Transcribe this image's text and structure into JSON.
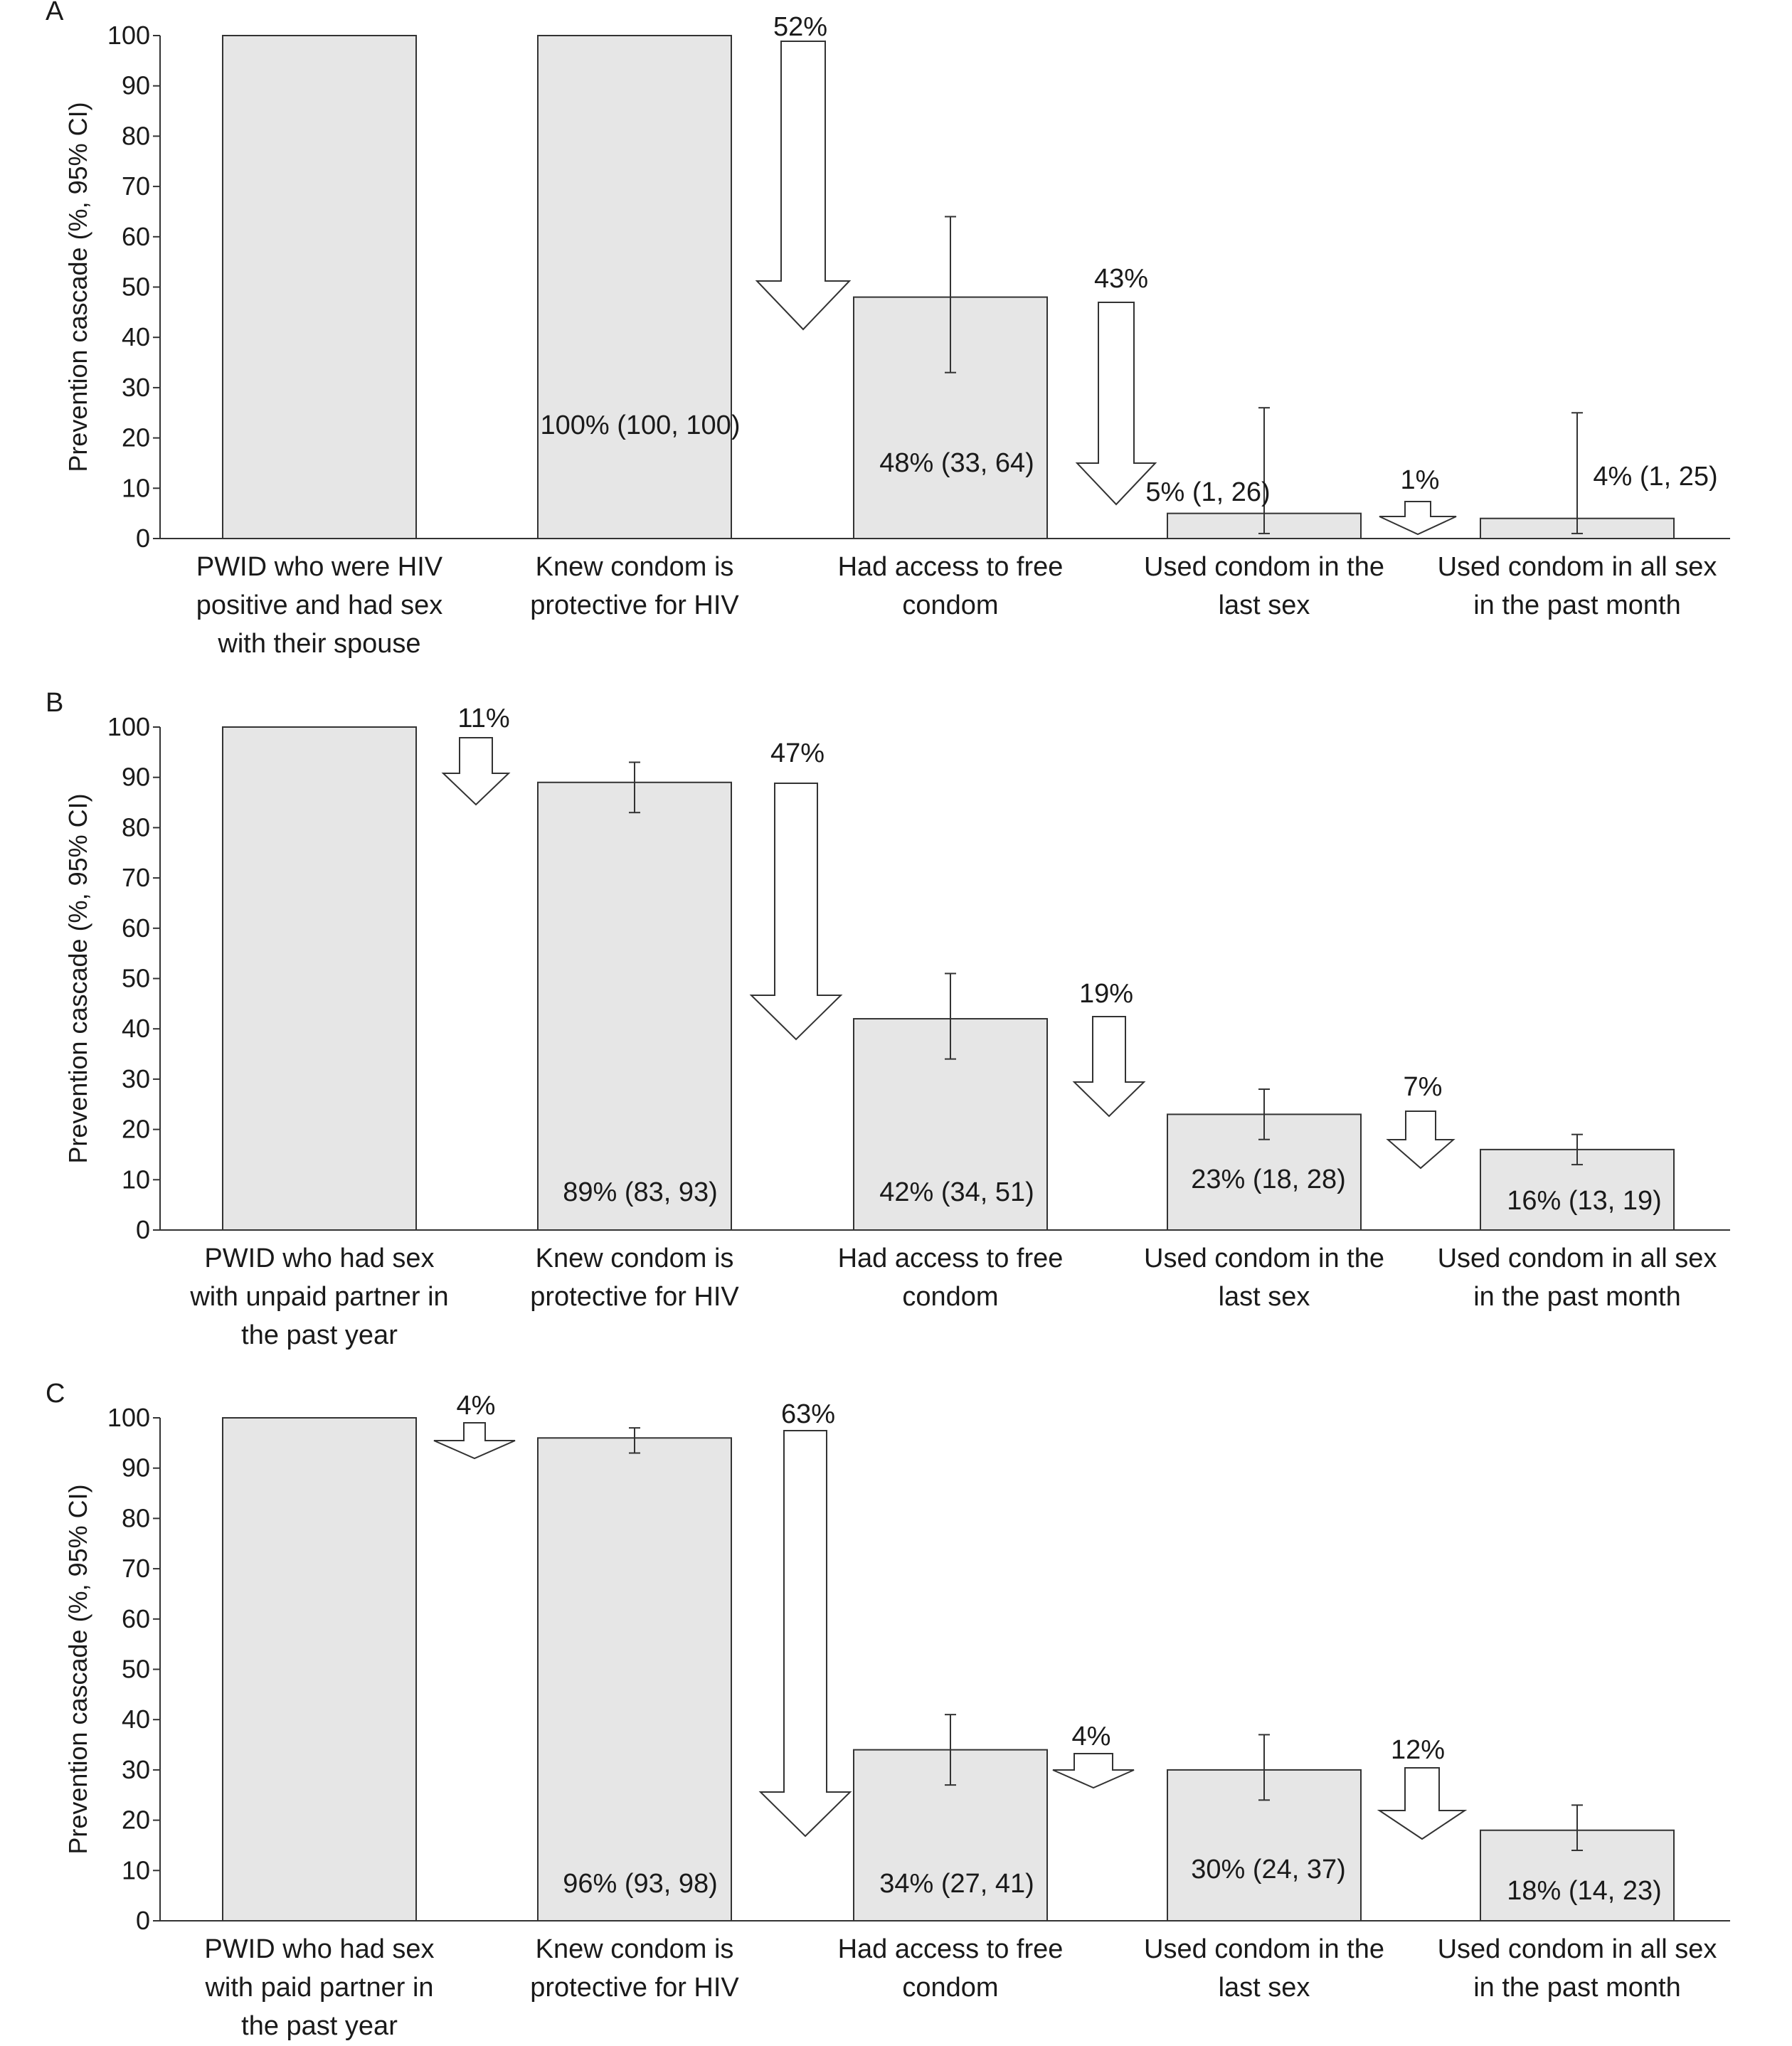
{
  "chart_data": [
    {
      "panel_label": "A",
      "type": "bar",
      "ylabel": "Prevention cascade (%, 95% CI)",
      "ylim": [
        0,
        100
      ],
      "yticks": [
        "0",
        "10",
        "20",
        "30",
        "40",
        "50",
        "60",
        "70",
        "80",
        "90",
        "100"
      ],
      "categories": [
        [
          "PWID who were HIV",
          "positive and had sex",
          "with their spouse"
        ],
        [
          "Knew condom is",
          "protective for HIV"
        ],
        [
          "Had access to free",
          "condom"
        ],
        [
          "Used condom in the",
          "last sex"
        ],
        [
          "Used condom in all sex",
          "in the past month"
        ]
      ],
      "values": [
        100,
        100,
        48,
        5,
        4
      ],
      "ci_low": [
        null,
        100,
        33,
        1,
        1
      ],
      "ci_high": [
        null,
        100,
        64,
        26,
        25
      ],
      "data_labels": [
        "",
        "100% (100, 100)",
        "48% (33, 64)",
        "5% (1, 26)",
        "4% (1, 25)"
      ],
      "drops": [
        "",
        "52%",
        "43%",
        "1%"
      ],
      "grid": false,
      "legend": "none"
    },
    {
      "panel_label": "B",
      "type": "bar",
      "ylabel": "Prevention cascade (%, 95% CI)",
      "ylim": [
        0,
        100
      ],
      "yticks": [
        "0",
        "10",
        "20",
        "30",
        "40",
        "50",
        "60",
        "70",
        "80",
        "90",
        "100"
      ],
      "categories": [
        [
          "PWID who had sex",
          "with unpaid partner in",
          "the past year"
        ],
        [
          "Knew condom is",
          "protective for HIV"
        ],
        [
          "Had access to free",
          "condom"
        ],
        [
          "Used condom in the",
          "last sex"
        ],
        [
          "Used condom in all sex",
          "in the past month"
        ]
      ],
      "values": [
        100,
        89,
        42,
        23,
        16
      ],
      "ci_low": [
        null,
        83,
        34,
        18,
        13
      ],
      "ci_high": [
        null,
        93,
        51,
        28,
        19
      ],
      "data_labels": [
        "",
        "89% (83, 93)",
        "42% (34, 51)",
        "23% (18, 28)",
        "16% (13, 19)"
      ],
      "drops": [
        "11%",
        "47%",
        "19%",
        "7%"
      ],
      "grid": false,
      "legend": "none"
    },
    {
      "panel_label": "C",
      "type": "bar",
      "ylabel": "Prevention cascade (%, 95% CI)",
      "ylim": [
        0,
        100
      ],
      "yticks": [
        "0",
        "10",
        "20",
        "30",
        "40",
        "50",
        "60",
        "70",
        "80",
        "90",
        "100"
      ],
      "categories": [
        [
          "PWID who had sex",
          "with paid partner in",
          "the past year"
        ],
        [
          "Knew condom is",
          "protective for HIV"
        ],
        [
          "Had access to free",
          "condom"
        ],
        [
          "Used condom in the",
          "last sex"
        ],
        [
          "Used condom in all sex",
          "in the past month"
        ]
      ],
      "values": [
        100,
        96,
        34,
        30,
        18
      ],
      "ci_low": [
        null,
        93,
        27,
        24,
        14
      ],
      "ci_high": [
        null,
        98,
        41,
        37,
        23
      ],
      "data_labels": [
        "",
        "96% (93, 98)",
        "34% (27, 41)",
        "30% (24, 37)",
        "18% (14, 23)"
      ],
      "drops": [
        "4%",
        "63%",
        "4%",
        "12%"
      ],
      "grid": false,
      "legend": "none"
    }
  ],
  "colors": {
    "bar_fill": "#e6e6e6",
    "bar_stroke": "#333333",
    "axis": "#333333",
    "arrow_fill": "#ffffff",
    "arrow_stroke": "#333333",
    "text": "#1a1a1a"
  }
}
